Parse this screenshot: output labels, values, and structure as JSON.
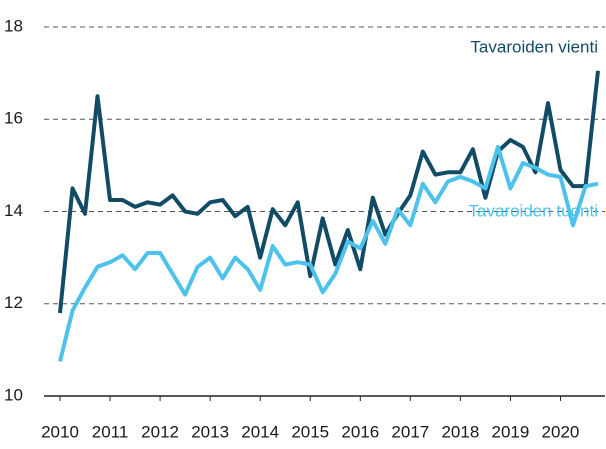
{
  "chart_data": {
    "type": "line",
    "x": [
      2010,
      2010.25,
      2010.5,
      2010.75,
      2011,
      2011.25,
      2011.5,
      2011.75,
      2012,
      2012.25,
      2012.5,
      2012.75,
      2013,
      2013.25,
      2013.5,
      2013.75,
      2014,
      2014.25,
      2014.5,
      2014.75,
      2015,
      2015.25,
      2015.5,
      2015.75,
      2016,
      2016.25,
      2016.5,
      2016.75,
      2017,
      2017.25,
      2017.5,
      2017.75,
      2018,
      2018.25,
      2018.5,
      2018.75,
      2019,
      2019.25,
      2019.5,
      2019.75,
      2020,
      2020.25,
      2020.5,
      2020.75
    ],
    "series": [
      {
        "name": "Tavaroiden vienti",
        "color": "#124b66",
        "values": [
          11.8,
          14.5,
          13.95,
          16.5,
          14.25,
          14.25,
          14.1,
          14.2,
          14.15,
          14.35,
          14.0,
          13.95,
          14.2,
          14.25,
          13.9,
          14.1,
          13.0,
          14.05,
          13.7,
          14.2,
          12.6,
          13.85,
          12.85,
          13.6,
          12.75,
          14.3,
          13.5,
          13.95,
          14.35,
          15.3,
          14.8,
          14.85,
          14.85,
          15.35,
          14.3,
          15.3,
          15.55,
          15.4,
          14.85,
          16.35,
          14.9,
          14.55,
          14.55,
          17.05
        ]
      },
      {
        "name": "Tavaroiden tuonti",
        "color": "#4cc2ec",
        "values": [
          10.75,
          11.85,
          12.35,
          12.8,
          12.9,
          13.05,
          12.75,
          13.1,
          13.1,
          12.65,
          12.2,
          12.8,
          13.0,
          12.55,
          13.0,
          12.75,
          12.3,
          13.25,
          12.85,
          12.9,
          12.85,
          12.25,
          12.65,
          13.35,
          13.2,
          13.8,
          13.3,
          14.05,
          13.7,
          14.6,
          14.2,
          14.65,
          14.75,
          14.65,
          14.5,
          15.4,
          14.5,
          15.05,
          14.95,
          14.8,
          14.75,
          13.7,
          14.55,
          14.6
        ]
      }
    ],
    "xlim": [
      2010,
      2020.75
    ],
    "xticks": [
      2010,
      2011,
      2012,
      2013,
      2014,
      2015,
      2016,
      2017,
      2018,
      2019,
      2020
    ],
    "ylim": [
      10,
      18
    ],
    "yticks": [
      10,
      12,
      14,
      16,
      18
    ],
    "grid": true
  }
}
